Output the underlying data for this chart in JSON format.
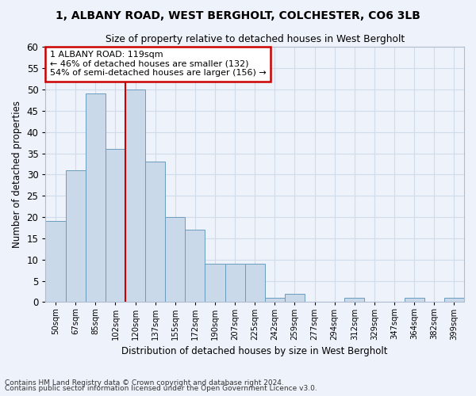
{
  "title1": "1, ALBANY ROAD, WEST BERGHOLT, COLCHESTER, CO6 3LB",
  "title2": "Size of property relative to detached houses in West Bergholt",
  "xlabel": "Distribution of detached houses by size in West Bergholt",
  "ylabel": "Number of detached properties",
  "footnote1": "Contains HM Land Registry data © Crown copyright and database right 2024.",
  "footnote2": "Contains public sector information licensed under the Open Government Licence v3.0.",
  "categories": [
    "50sqm",
    "67sqm",
    "85sqm",
    "102sqm",
    "120sqm",
    "137sqm",
    "155sqm",
    "172sqm",
    "190sqm",
    "207sqm",
    "225sqm",
    "242sqm",
    "259sqm",
    "277sqm",
    "294sqm",
    "312sqm",
    "329sqm",
    "347sqm",
    "364sqm",
    "382sqm",
    "399sqm"
  ],
  "values": [
    19,
    31,
    49,
    36,
    50,
    33,
    20,
    17,
    9,
    9,
    9,
    1,
    2,
    0,
    0,
    1,
    0,
    0,
    1,
    0,
    1
  ],
  "bar_color": "#c9d9ea",
  "bar_edge_color": "#6a9cbf",
  "highlight_label": "1 ALBANY ROAD: 119sqm",
  "annotation_line1": "← 46% of detached houses are smaller (132)",
  "annotation_line2": "54% of semi-detached houses are larger (156) →",
  "vline_color": "#cc0000",
  "annotation_box_color": "#ffffff",
  "annotation_box_edge": "#cc0000",
  "ylim": [
    0,
    60
  ],
  "yticks": [
    0,
    5,
    10,
    15,
    20,
    25,
    30,
    35,
    40,
    45,
    50,
    55,
    60
  ],
  "grid_color": "#d0dcea",
  "bg_color": "#eef2fa"
}
